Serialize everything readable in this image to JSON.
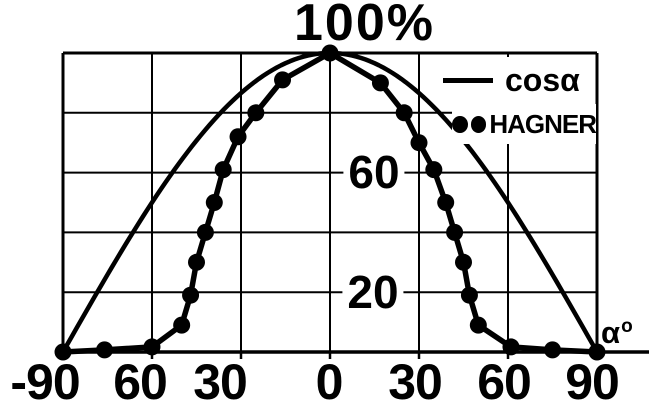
{
  "colors": {
    "ink": "#000000",
    "background": "#ffffff"
  },
  "y_axis": {
    "top_label": "100%",
    "labels": [
      {
        "value": 60,
        "text": "60"
      },
      {
        "value": 20,
        "text": "20"
      }
    ]
  },
  "x_axis": {
    "tick_labels": [
      "-90",
      "60",
      "30",
      "0",
      "30",
      "60",
      "90"
    ],
    "unit_label": "α",
    "unit_superscript": "o"
  },
  "legend": {
    "items": [
      {
        "marker": "line",
        "label": "cosα"
      },
      {
        "marker": "dots",
        "label": "HAGNER"
      }
    ]
  },
  "chart_data": {
    "type": "line",
    "title": "",
    "xlabel": "α°",
    "ylabel": "%",
    "xlim": [
      -90,
      90
    ],
    "ylim": [
      0,
      100
    ],
    "grid": true,
    "legend_position": "top-right",
    "x_ticks": [
      -90,
      -60,
      -30,
      0,
      30,
      60,
      90
    ],
    "x_tick_labels": [
      "-90",
      "60",
      "30",
      "0",
      "30",
      "60",
      "90"
    ],
    "y_ticks": [
      0,
      20,
      40,
      60,
      80,
      100
    ],
    "y_tick_labels_shown": {
      "100": "100%",
      "60": "60",
      "20": "20"
    },
    "series": [
      {
        "name": "cosα",
        "style": "solid-line",
        "model": "y = 100·cos(α)",
        "x": [
          -90,
          -80,
          -70,
          -60,
          -50,
          -40,
          -30,
          -20,
          -10,
          0,
          10,
          20,
          30,
          40,
          50,
          60,
          70,
          80,
          90
        ],
        "y": [
          0,
          17.4,
          34.2,
          50,
          64.3,
          76.6,
          86.6,
          94,
          98.5,
          100,
          98.5,
          94,
          86.6,
          76.6,
          64.3,
          50,
          34.2,
          17.4,
          0
        ]
      },
      {
        "name": "HAGNER",
        "style": "filled-dots-connected",
        "x": [
          -90,
          -76,
          -60,
          -50,
          -47,
          -45,
          -42,
          -39,
          -36,
          -31,
          -25,
          -16,
          0,
          17,
          25,
          30,
          35,
          39,
          42,
          45,
          47,
          50,
          61,
          75,
          90
        ],
        "y": [
          0,
          0.7,
          1.7,
          9,
          19,
          30,
          40,
          50,
          61,
          72,
          80,
          91,
          100,
          90,
          80,
          70,
          61,
          50,
          40,
          30,
          19,
          9,
          1.7,
          0.7,
          0
        ]
      }
    ]
  }
}
